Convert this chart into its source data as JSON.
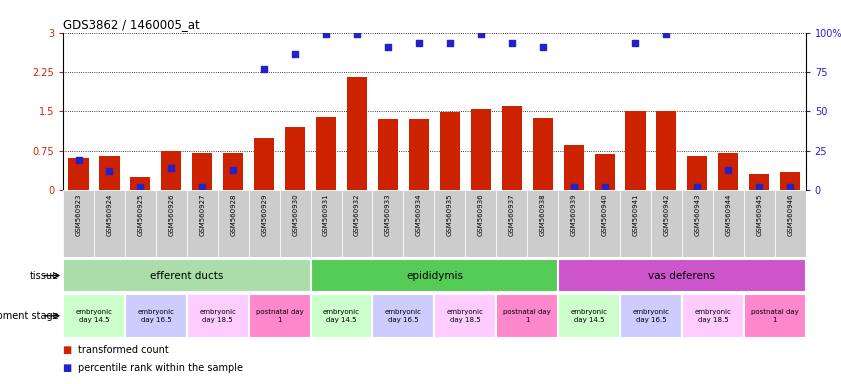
{
  "title": "GDS3862 / 1460005_at",
  "samples": [
    "GSM560923",
    "GSM560924",
    "GSM560925",
    "GSM560926",
    "GSM560927",
    "GSM560928",
    "GSM560929",
    "GSM560930",
    "GSM560931",
    "GSM560932",
    "GSM560933",
    "GSM560934",
    "GSM560935",
    "GSM560936",
    "GSM560937",
    "GSM560938",
    "GSM560939",
    "GSM560940",
    "GSM560941",
    "GSM560942",
    "GSM560943",
    "GSM560944",
    "GSM560945",
    "GSM560946"
  ],
  "red_values": [
    0.62,
    0.65,
    0.25,
    0.75,
    0.7,
    0.7,
    1.0,
    1.2,
    1.4,
    2.15,
    1.35,
    1.35,
    1.48,
    1.55,
    1.6,
    1.38,
    0.85,
    0.68,
    1.5,
    1.5,
    0.65,
    0.7,
    0.3,
    0.35
  ],
  "blue_values": [
    0.58,
    0.37,
    0.05,
    0.42,
    0.05,
    0.38,
    2.3,
    2.6,
    2.97,
    2.97,
    2.72,
    2.8,
    2.8,
    2.97,
    2.8,
    2.72,
    0.05,
    0.05,
    2.8,
    2.97,
    0.05,
    0.38,
    0.05,
    0.05
  ],
  "bar_color": "#cc2200",
  "dot_color": "#2222cc",
  "ylim_left": [
    0,
    3.0
  ],
  "ylim_right": [
    0,
    100
  ],
  "yticks_left": [
    0,
    0.75,
    1.5,
    2.25,
    3.0
  ],
  "ytick_labels_left": [
    "0",
    "0.75",
    "1.5",
    "2.25",
    "3"
  ],
  "yticks_right": [
    0,
    25,
    50,
    75,
    100
  ],
  "ytick_labels_right": [
    "0",
    "25",
    "50",
    "75",
    "100%"
  ],
  "tissue_groups": [
    {
      "label": "efferent ducts",
      "start": 0,
      "end": 8,
      "color": "#aaddaa"
    },
    {
      "label": "epididymis",
      "start": 8,
      "end": 16,
      "color": "#55cc55"
    },
    {
      "label": "vas deferens",
      "start": 16,
      "end": 24,
      "color": "#cc55cc"
    }
  ],
  "dev_stages": [
    {
      "label": "embryonic\nday 14.5",
      "start": 0,
      "end": 2,
      "color": "#ccffcc"
    },
    {
      "label": "embryonic\nday 16.5",
      "start": 2,
      "end": 4,
      "color": "#ccccff"
    },
    {
      "label": "embryonic\nday 18.5",
      "start": 4,
      "end": 6,
      "color": "#ffccff"
    },
    {
      "label": "postnatal day\n1",
      "start": 6,
      "end": 8,
      "color": "#ff88cc"
    },
    {
      "label": "embryonic\nday 14.5",
      "start": 8,
      "end": 10,
      "color": "#ccffcc"
    },
    {
      "label": "embryonic\nday 16.5",
      "start": 10,
      "end": 12,
      "color": "#ccccff"
    },
    {
      "label": "embryonic\nday 18.5",
      "start": 12,
      "end": 14,
      "color": "#ffccff"
    },
    {
      "label": "postnatal day\n1",
      "start": 14,
      "end": 16,
      "color": "#ff88cc"
    },
    {
      "label": "embryonic\nday 14.5",
      "start": 16,
      "end": 18,
      "color": "#ccffcc"
    },
    {
      "label": "embryonic\nday 16.5",
      "start": 18,
      "end": 20,
      "color": "#ccccff"
    },
    {
      "label": "embryonic\nday 18.5",
      "start": 20,
      "end": 22,
      "color": "#ffccff"
    },
    {
      "label": "postnatal day\n1",
      "start": 22,
      "end": 24,
      "color": "#ff88cc"
    }
  ],
  "tissue_label": "tissue",
  "dev_label": "development stage",
  "legend_red": "transformed count",
  "legend_blue": "percentile rank within the sample",
  "xticklabel_bg": "#cccccc",
  "spine_color": "black"
}
